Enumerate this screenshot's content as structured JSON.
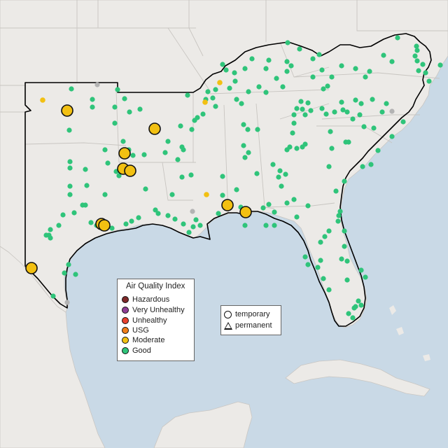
{
  "colors": {
    "water": "#c9d9e6",
    "land": "#eceae7",
    "Hazardous": "#7e2a2a",
    "Very Unhealthy": "#8f3f97",
    "Unhealthy": "#e8412f",
    "USG": "#f07e1a",
    "Moderate": "#f2c012",
    "Good": "#2fc47a",
    "no_data": "#b3b3b3"
  },
  "legend": {
    "title": "Air Quality Index",
    "categories": [
      "Hazardous",
      "Very Unhealthy",
      "Unhealthy",
      "USG",
      "Moderate",
      "Good"
    ],
    "monitor_types": [
      "temporary",
      "permanent"
    ]
  },
  "monitors": {
    "moderate_large": [
      [
        96,
        158
      ],
      [
        221,
        184
      ],
      [
        178,
        219
      ],
      [
        176,
        241
      ],
      [
        186,
        244
      ],
      [
        145,
        320
      ],
      [
        149,
        322
      ],
      [
        325,
        293
      ],
      [
        351,
        303
      ],
      [
        45,
        383
      ]
    ],
    "moderate_small": [
      [
        61,
        143
      ],
      [
        314,
        118
      ],
      [
        293,
        146
      ],
      [
        295,
        278
      ]
    ],
    "no_data": [
      [
        139,
        121
      ],
      [
        560,
        159
      ],
      [
        275,
        302
      ],
      [
        96,
        432
      ]
    ],
    "good": [
      [
        411,
        61
      ],
      [
        428,
        70
      ],
      [
        456,
        78
      ],
      [
        447,
        84
      ],
      [
        460,
        100
      ],
      [
        447,
        110
      ],
      [
        416,
        94
      ],
      [
        384,
        86
      ],
      [
        380,
        98
      ],
      [
        360,
        84
      ],
      [
        350,
        98
      ],
      [
        335,
        104
      ],
      [
        323,
        100
      ],
      [
        318,
        92
      ],
      [
        568,
        54
      ],
      [
        595,
        66
      ],
      [
        596,
        72
      ],
      [
        593,
        80
      ],
      [
        596,
        87
      ],
      [
        604,
        92
      ],
      [
        608,
        104
      ],
      [
        598,
        101
      ],
      [
        613,
        116
      ],
      [
        629,
        93
      ],
      [
        560,
        88
      ],
      [
        548,
        79
      ],
      [
        522,
        110
      ],
      [
        528,
        102
      ],
      [
        508,
        98
      ],
      [
        488,
        94
      ],
      [
        474,
        110
      ],
      [
        468,
        123
      ],
      [
        462,
        127
      ],
      [
        410,
        88
      ],
      [
        410,
        102
      ],
      [
        395,
        112
      ],
      [
        404,
        124
      ],
      [
        380,
        132
      ],
      [
        370,
        124
      ],
      [
        355,
        131
      ],
      [
        345,
        148
      ],
      [
        338,
        142
      ],
      [
        328,
        126
      ],
      [
        336,
        116
      ],
      [
        297,
        131
      ],
      [
        308,
        128
      ],
      [
        304,
        140
      ],
      [
        308,
        152
      ],
      [
        290,
        163
      ],
      [
        278,
        172
      ],
      [
        274,
        185
      ],
      [
        258,
        180
      ],
      [
        260,
        210
      ],
      [
        254,
        228
      ],
      [
        273,
        250
      ],
      [
        260,
        253
      ],
      [
        246,
        278
      ],
      [
        226,
        305
      ],
      [
        240,
        308
      ],
      [
        250,
        313
      ],
      [
        262,
        320
      ],
      [
        270,
        332
      ],
      [
        280,
        314
      ],
      [
        286,
        322
      ],
      [
        276,
        324
      ],
      [
        348,
        178
      ],
      [
        354,
        185
      ],
      [
        368,
        185
      ],
      [
        348,
        208
      ],
      [
        355,
        218
      ],
      [
        350,
        225
      ],
      [
        367,
        248
      ],
      [
        318,
        252
      ],
      [
        318,
        279
      ],
      [
        338,
        271
      ],
      [
        344,
        296
      ],
      [
        312,
        305
      ],
      [
        376,
        297
      ],
      [
        384,
        292
      ],
      [
        392,
        303
      ],
      [
        410,
        290
      ],
      [
        420,
        285
      ],
      [
        402,
        266
      ],
      [
        400,
        244
      ],
      [
        408,
        249
      ],
      [
        398,
        253
      ],
      [
        390,
        235
      ],
      [
        410,
        214
      ],
      [
        414,
        210
      ],
      [
        424,
        212
      ],
      [
        432,
        210
      ],
      [
        436,
        206
      ],
      [
        418,
        190
      ],
      [
        420,
        176
      ],
      [
        420,
        164
      ],
      [
        436,
        164
      ],
      [
        444,
        158
      ],
      [
        460,
        155
      ],
      [
        466,
        163
      ],
      [
        440,
        147
      ],
      [
        430,
        145
      ],
      [
        432,
        156
      ],
      [
        424,
        155
      ],
      [
        496,
        160
      ],
      [
        508,
        143
      ],
      [
        516,
        148
      ],
      [
        514,
        164
      ],
      [
        520,
        181
      ],
      [
        532,
        142
      ],
      [
        534,
        183
      ],
      [
        546,
        160
      ],
      [
        552,
        148
      ],
      [
        576,
        174
      ],
      [
        560,
        195
      ],
      [
        540,
        215
      ],
      [
        530,
        235
      ],
      [
        518,
        238
      ],
      [
        494,
        203
      ],
      [
        498,
        203
      ],
      [
        474,
        212
      ],
      [
        472,
        188
      ],
      [
        478,
        160
      ],
      [
        490,
        157
      ],
      [
        504,
        170
      ],
      [
        488,
        146
      ],
      [
        470,
        238
      ],
      [
        492,
        259
      ],
      [
        480,
        273
      ],
      [
        486,
        302
      ],
      [
        484,
        308
      ],
      [
        483,
        316
      ],
      [
        470,
        330
      ],
      [
        464,
        338
      ],
      [
        492,
        330
      ],
      [
        492,
        352
      ],
      [
        488,
        370
      ],
      [
        496,
        373
      ],
      [
        458,
        346
      ],
      [
        458,
        372
      ],
      [
        454,
        382
      ],
      [
        462,
        398
      ],
      [
        470,
        414
      ],
      [
        496,
        400
      ],
      [
        516,
        386
      ],
      [
        522,
        396
      ],
      [
        512,
        430
      ],
      [
        516,
        436
      ],
      [
        506,
        440
      ],
      [
        498,
        448
      ],
      [
        504,
        454
      ],
      [
        508,
        438
      ],
      [
        440,
        378
      ],
      [
        436,
        367
      ],
      [
        440,
        294
      ],
      [
        424,
        310
      ],
      [
        392,
        322
      ],
      [
        380,
        322
      ],
      [
        350,
        322
      ],
      [
        268,
        136
      ],
      [
        294,
        142
      ],
      [
        282,
        168
      ],
      [
        262,
        214
      ],
      [
        240,
        202
      ],
      [
        236,
        218
      ],
      [
        168,
        128
      ],
      [
        132,
        142
      ],
      [
        132,
        153
      ],
      [
        102,
        127
      ],
      [
        164,
        153
      ],
      [
        178,
        141
      ],
      [
        200,
        156
      ],
      [
        185,
        160
      ],
      [
        164,
        176
      ],
      [
        99,
        186
      ],
      [
        100,
        231
      ],
      [
        100,
        240
      ],
      [
        100,
        266
      ],
      [
        100,
        278
      ],
      [
        122,
        242
      ],
      [
        124,
        265
      ],
      [
        122,
        293
      ],
      [
        106,
        304
      ],
      [
        90,
        307
      ],
      [
        72,
        328
      ],
      [
        66,
        336
      ],
      [
        70,
        336
      ],
      [
        72,
        340
      ],
      [
        84,
        322
      ],
      [
        176,
        202
      ],
      [
        206,
        221
      ],
      [
        166,
        245
      ],
      [
        170,
        251
      ],
      [
        150,
        278
      ],
      [
        198,
        311
      ],
      [
        188,
        316
      ],
      [
        180,
        320
      ],
      [
        160,
        326
      ],
      [
        130,
        318
      ],
      [
        138,
        322
      ],
      [
        98,
        378
      ],
      [
        92,
        390
      ],
      [
        108,
        392
      ],
      [
        76,
        423
      ],
      [
        184,
        214
      ],
      [
        190,
        222
      ],
      [
        208,
        270
      ],
      [
        222,
        300
      ],
      [
        150,
        214
      ],
      [
        154,
        233
      ],
      [
        118,
        293
      ]
    ]
  }
}
